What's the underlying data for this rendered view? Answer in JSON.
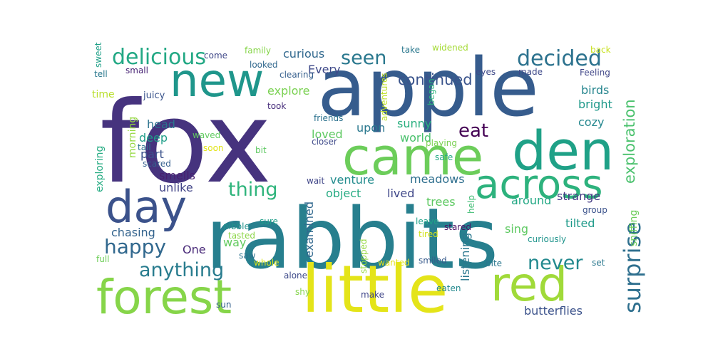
{
  "words": [
    {
      "text": "fox",
      "color": "#46337e"
    },
    {
      "text": "apple",
      "color": "#365c8d"
    },
    {
      "text": "rabbits",
      "color": "#277f8e"
    },
    {
      "text": "little",
      "color": "#e4e419"
    },
    {
      "text": "forest",
      "color": "#86d549"
    },
    {
      "text": "came",
      "color": "#6ccd5a"
    },
    {
      "text": "den",
      "color": "#1fa187"
    },
    {
      "text": "across",
      "color": "#2db27d"
    },
    {
      "text": "new",
      "color": "#1f968b"
    },
    {
      "text": "day",
      "color": "#3b528b"
    },
    {
      "text": "red",
      "color": "#a0da39"
    },
    {
      "text": "surprise",
      "color": "#2e6f8e"
    },
    {
      "text": "delicious",
      "color": "#22a884"
    },
    {
      "text": "decided",
      "color": "#2c728e"
    },
    {
      "text": "happy",
      "color": "#31688e"
    },
    {
      "text": "anything",
      "color": "#287c8e"
    },
    {
      "text": "thing",
      "color": "#2fb47c"
    },
    {
      "text": "never",
      "color": "#23898e"
    },
    {
      "text": "seen",
      "color": "#2a788e"
    },
    {
      "text": "eat",
      "color": "#440154"
    },
    {
      "text": "continued",
      "color": "#3a548c"
    },
    {
      "text": "exploration",
      "color": "#4ac16d"
    },
    {
      "text": "curious",
      "color": "#31688e"
    },
    {
      "text": "Every",
      "color": "#3e4989"
    },
    {
      "text": "explore",
      "color": "#7ad151"
    },
    {
      "text": "birds",
      "color": "#25858e"
    },
    {
      "text": "bright",
      "color": "#1f998a"
    },
    {
      "text": "cozy",
      "color": "#24878e"
    },
    {
      "text": "sunny",
      "color": "#29af7f"
    },
    {
      "text": "world",
      "color": "#4ac16d"
    },
    {
      "text": "loved",
      "color": "#5ec962"
    },
    {
      "text": "upon",
      "color": "#2a788e"
    },
    {
      "text": "head",
      "color": "#2c728e"
    },
    {
      "text": "deep",
      "color": "#1f9e89"
    },
    {
      "text": "part",
      "color": "#3b528b"
    },
    {
      "text": "smells",
      "color": "#481f70"
    },
    {
      "text": "unlike",
      "color": "#414487"
    },
    {
      "text": "venture",
      "color": "#228c8d"
    },
    {
      "text": "object",
      "color": "#25ab82"
    },
    {
      "text": "meadows",
      "color": "#2e6f8e"
    },
    {
      "text": "lived",
      "color": "#3f4788"
    },
    {
      "text": "trees",
      "color": "#5ec962"
    },
    {
      "text": "around",
      "color": "#22a884"
    },
    {
      "text": "strange",
      "color": "#443a83"
    },
    {
      "text": "tilted",
      "color": "#1f9a8a"
    },
    {
      "text": "sing",
      "color": "#5ec962"
    },
    {
      "text": "chasing",
      "color": "#33638d"
    },
    {
      "text": "way",
      "color": "#63cb5f"
    },
    {
      "text": "One",
      "color": "#482878"
    },
    {
      "text": "examined",
      "color": "#31688e"
    },
    {
      "text": "listening",
      "color": "#2a778e"
    },
    {
      "text": "butterflies",
      "color": "#3b528b"
    },
    {
      "text": "sniffing",
      "color": "#6ccd5a"
    },
    {
      "text": "morning",
      "color": "#95d840"
    },
    {
      "text": "exploring",
      "color": "#25ab82"
    },
    {
      "text": "time",
      "color": "#b8de29"
    },
    {
      "text": "juicy",
      "color": "#3a548c"
    },
    {
      "text": "small",
      "color": "#482475"
    },
    {
      "text": "tell",
      "color": "#2a788e"
    },
    {
      "text": "sweet",
      "color": "#1fa088"
    },
    {
      "text": "come",
      "color": "#3f4788"
    },
    {
      "text": "family",
      "color": "#86d549"
    },
    {
      "text": "looked",
      "color": "#31688e"
    },
    {
      "text": "clearing",
      "color": "#355f8d"
    },
    {
      "text": "take",
      "color": "#2a788e"
    },
    {
      "text": "widened",
      "color": "#a5db36"
    },
    {
      "text": "back",
      "color": "#c8e020"
    },
    {
      "text": "eyes",
      "color": "#3e4989"
    },
    {
      "text": "made",
      "color": "#3e4989"
    },
    {
      "text": "Feeling",
      "color": "#404688"
    },
    {
      "text": "began",
      "color": "#2db27d"
    },
    {
      "text": "adventures",
      "color": "#bddf26"
    },
    {
      "text": "took",
      "color": "#472d7b"
    },
    {
      "text": "friends",
      "color": "#2c728e"
    },
    {
      "text": "waved",
      "color": "#60ca60"
    },
    {
      "text": "tail",
      "color": "#2c728e"
    },
    {
      "text": "scared",
      "color": "#355f8d"
    },
    {
      "text": "soon",
      "color": "#e2e418"
    },
    {
      "text": "bit",
      "color": "#5ec962"
    },
    {
      "text": "closer",
      "color": "#3e4989"
    },
    {
      "text": "playing",
      "color": "#7ad151"
    },
    {
      "text": "safe",
      "color": "#22a884"
    },
    {
      "text": "wait",
      "color": "#404688"
    },
    {
      "text": "leave",
      "color": "#1fa188"
    },
    {
      "text": "help",
      "color": "#3fbc73"
    },
    {
      "text": "group",
      "color": "#3b528b"
    },
    {
      "text": "nibble",
      "color": "#21918c"
    },
    {
      "text": "sure",
      "color": "#1f9e89"
    },
    {
      "text": "tasted",
      "color": "#8bd646"
    },
    {
      "text": "saw",
      "color": "#2c728e"
    },
    {
      "text": "full",
      "color": "#6ece58"
    },
    {
      "text": "stared",
      "color": "#471164"
    },
    {
      "text": "tired",
      "color": "#d2e21b"
    },
    {
      "text": "curiously",
      "color": "#1f948c"
    },
    {
      "text": "set",
      "color": "#2a788e"
    },
    {
      "text": "stopped",
      "color": "#95d840"
    },
    {
      "text": "whole",
      "color": "#d8e219"
    },
    {
      "text": "wanted",
      "color": "#e5e419"
    },
    {
      "text": "smiled",
      "color": "#375a8c"
    },
    {
      "text": "alone",
      "color": "#3e4a89"
    },
    {
      "text": "bite",
      "color": "#2a778e"
    },
    {
      "text": "shy",
      "color": "#84d44b"
    },
    {
      "text": "make",
      "color": "#404688"
    },
    {
      "text": "eaten",
      "color": "#23898e"
    },
    {
      "text": "sun",
      "color": "#34608d"
    }
  ]
}
